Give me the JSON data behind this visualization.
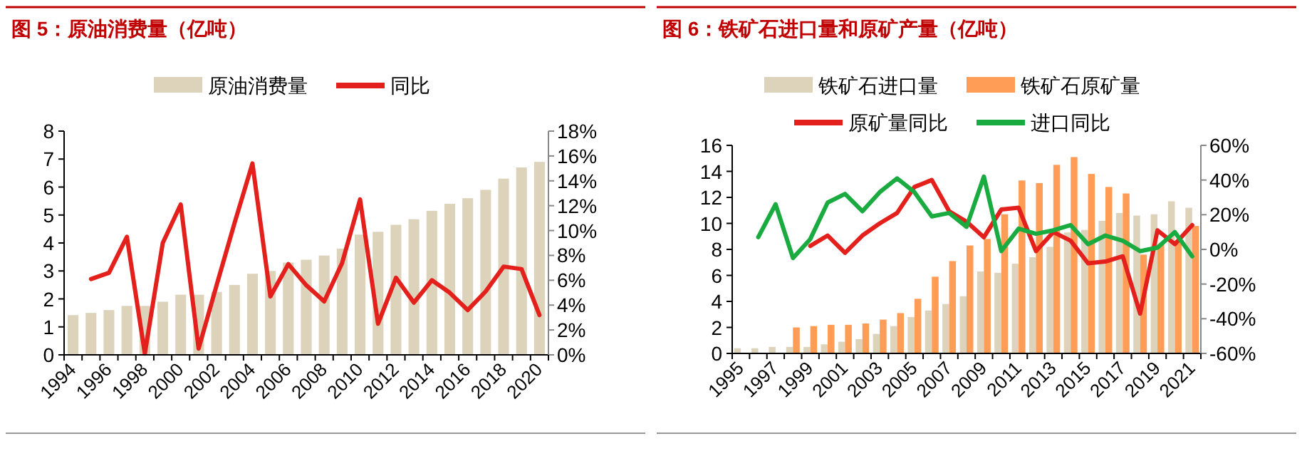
{
  "chart_data": [
    {
      "type": "bar",
      "title": "图 5：原油消费量（亿吨）",
      "categories": [
        "1994",
        null,
        "1996",
        null,
        "1998",
        null,
        "2000",
        null,
        "2002",
        null,
        "2004",
        null,
        "2006",
        null,
        "2008",
        null,
        "2010",
        null,
        "2012",
        null,
        "2014",
        null,
        "2016",
        null,
        "2018",
        null,
        "2020"
      ],
      "series": [
        {
          "name": "原油消费量",
          "color": "#ddd3bb",
          "values": [
            1.42,
            1.5,
            1.6,
            1.75,
            1.75,
            1.9,
            2.15,
            2.15,
            2.25,
            2.5,
            2.9,
            3.0,
            3.3,
            3.4,
            3.55,
            3.8,
            4.3,
            4.4,
            4.65,
            4.85,
            5.15,
            5.4,
            5.6,
            5.9,
            6.3,
            6.7,
            6.9
          ]
        },
        {
          "name": "同比",
          "type": "line",
          "axis": "y2",
          "color": "#e3201b",
          "values": [
            null,
            6.1,
            6.6,
            9.5,
            0.1,
            9.0,
            12.1,
            0.5,
            5.6,
            10.6,
            15.4,
            4.7,
            7.3,
            5.6,
            4.3,
            7.4,
            12.5,
            2.5,
            6.2,
            4.2,
            6.0,
            5.0,
            3.6,
            5.1,
            7.1,
            6.9,
            3.2
          ]
        }
      ],
      "ylim": [
        0,
        8
      ],
      "yticks": [
        0,
        1,
        2,
        3,
        4,
        5,
        6,
        7,
        8
      ],
      "y2lim": [
        0,
        18
      ],
      "y2ticks": [
        {
          "value": 0,
          "label": "0%"
        },
        {
          "value": 2,
          "label": "2%"
        },
        {
          "value": 4,
          "label": "4%"
        },
        {
          "value": 6,
          "label": "6%"
        },
        {
          "value": 8,
          "label": "8%"
        },
        {
          "value": 10,
          "label": "10%"
        },
        {
          "value": 12,
          "label": "12%"
        },
        {
          "value": 14,
          "label": "14%"
        },
        {
          "value": 16,
          "label": "16%"
        },
        {
          "value": 18,
          "label": "18%"
        }
      ],
      "legend": "top",
      "grid": false
    },
    {
      "type": "bar",
      "title": "图 6：铁矿石进口量和原矿产量（亿吨）",
      "categories": [
        "1995",
        null,
        "1997",
        null,
        "1999",
        null,
        "2001",
        null,
        "2003",
        null,
        "2005",
        null,
        "2007",
        null,
        "2009",
        null,
        "2011",
        null,
        "2013",
        null,
        "2015",
        null,
        "2017",
        null,
        "2019",
        null,
        "2021"
      ],
      "series": [
        {
          "name": "铁矿石进口量",
          "color": "#ddd3bb",
          "values": [
            0.4,
            0.4,
            0.5,
            0.5,
            0.5,
            0.7,
            0.9,
            1.1,
            1.5,
            2.1,
            2.8,
            3.3,
            3.8,
            4.4,
            6.3,
            6.2,
            6.9,
            7.4,
            8.2,
            9.3,
            9.5,
            10.2,
            10.8,
            10.6,
            10.7,
            11.7,
            11.2
          ]
        },
        {
          "name": "铁矿石原矿量",
          "color": "#ff9c55",
          "values": [
            null,
            null,
            null,
            2.0,
            2.1,
            2.2,
            2.2,
            2.3,
            2.6,
            3.1,
            4.2,
            5.9,
            7.1,
            8.3,
            8.8,
            10.7,
            13.3,
            13.1,
            14.5,
            15.1,
            13.8,
            12.8,
            12.3,
            7.6,
            8.4,
            8.7,
            9.8
          ]
        },
        {
          "name": "原矿量同比",
          "type": "line",
          "axis": "y2",
          "color": "#e3201b",
          "values": [
            null,
            null,
            null,
            null,
            2,
            8,
            -2,
            8,
            15,
            21,
            36,
            40,
            22,
            16,
            7,
            23,
            24,
            -1,
            10,
            5,
            -8,
            -7,
            -4,
            -37,
            11,
            3,
            14
          ]
        },
        {
          "name": "进口同比",
          "type": "line",
          "axis": "y2",
          "color": "#1aab40",
          "values": [
            null,
            7,
            26,
            -5,
            6,
            27,
            32,
            22,
            33,
            41,
            33,
            19,
            21,
            13,
            42,
            -1,
            12,
            9,
            11,
            14,
            3,
            8,
            5,
            -1,
            1,
            10,
            -4
          ]
        }
      ],
      "ylim": [
        0,
        16
      ],
      "yticks": [
        0,
        2,
        4,
        6,
        8,
        10,
        12,
        14,
        16
      ],
      "y2lim": [
        -60,
        60
      ],
      "y2ticks": [
        {
          "value": -60,
          "label": "-60%"
        },
        {
          "value": -40,
          "label": "-40%"
        },
        {
          "value": -20,
          "label": "-20%"
        },
        {
          "value": 0,
          "label": "0%"
        },
        {
          "value": 20,
          "label": "20%"
        },
        {
          "value": 40,
          "label": "40%"
        },
        {
          "value": 60,
          "label": "60%"
        }
      ],
      "legend": "top",
      "grid": false
    }
  ]
}
